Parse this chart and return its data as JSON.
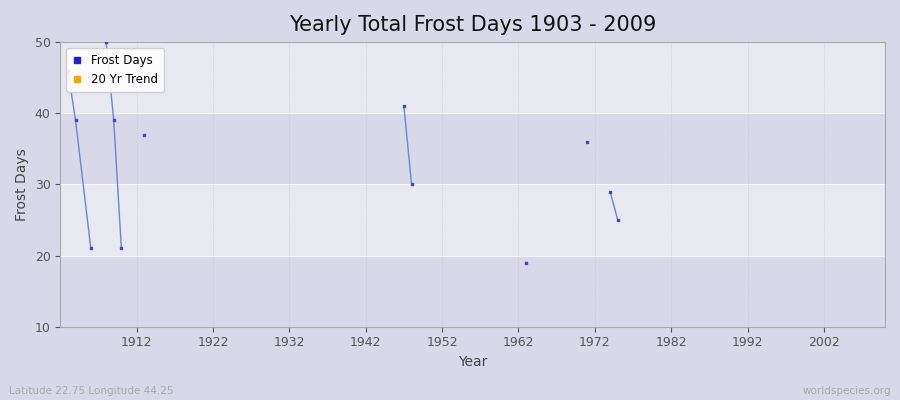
{
  "title": "Yearly Total Frost Days 1903 - 2009",
  "xlabel": "Year",
  "ylabel": "Frost Days",
  "xlim": [
    1902,
    2010
  ],
  "ylim": [
    10,
    50
  ],
  "xticks": [
    1912,
    1922,
    1932,
    1942,
    1952,
    1962,
    1972,
    1982,
    1992,
    2002
  ],
  "yticks": [
    10,
    20,
    30,
    40,
    50
  ],
  "bg_color": "#d8d8e8",
  "plot_bg_color": "#e8e8f0",
  "frost_color": "#4444cc",
  "line_color": "#6688cc",
  "trend_color": "#ffa500",
  "frost_days_data": [
    [
      1903,
      46
    ],
    [
      1904,
      39
    ],
    [
      1906,
      21
    ],
    [
      1908,
      50
    ],
    [
      1909,
      39
    ],
    [
      1910,
      21
    ],
    [
      1913,
      37
    ],
    [
      1947,
      41
    ],
    [
      1948,
      30
    ],
    [
      1963,
      19
    ],
    [
      1971,
      36
    ],
    [
      1974,
      29
    ],
    [
      1975,
      25
    ]
  ],
  "line_segments": [
    [
      [
        1903,
        46
      ],
      [
        1904,
        39
      ],
      [
        1906,
        21
      ]
    ],
    [
      [
        1908,
        50
      ],
      [
        1909,
        39
      ],
      [
        1910,
        21
      ]
    ],
    [
      [
        1947,
        41
      ],
      [
        1948,
        30
      ]
    ],
    [
      [
        1974,
        29
      ],
      [
        1975,
        25
      ]
    ]
  ],
  "band_ranges": [
    [
      10,
      20
    ],
    [
      30,
      40
    ]
  ],
  "band_color": "#d8d8e8",
  "watermark_left": "Latitude 22.75 Longitude 44.25",
  "watermark_right": "worldspecies.org",
  "legend_labels": [
    "Frost Days",
    "20 Yr Trend"
  ],
  "legend_colors": [
    "#2222cc",
    "#ffa500"
  ],
  "marker_size": 2,
  "line_width": 1.0,
  "title_fontsize": 15
}
